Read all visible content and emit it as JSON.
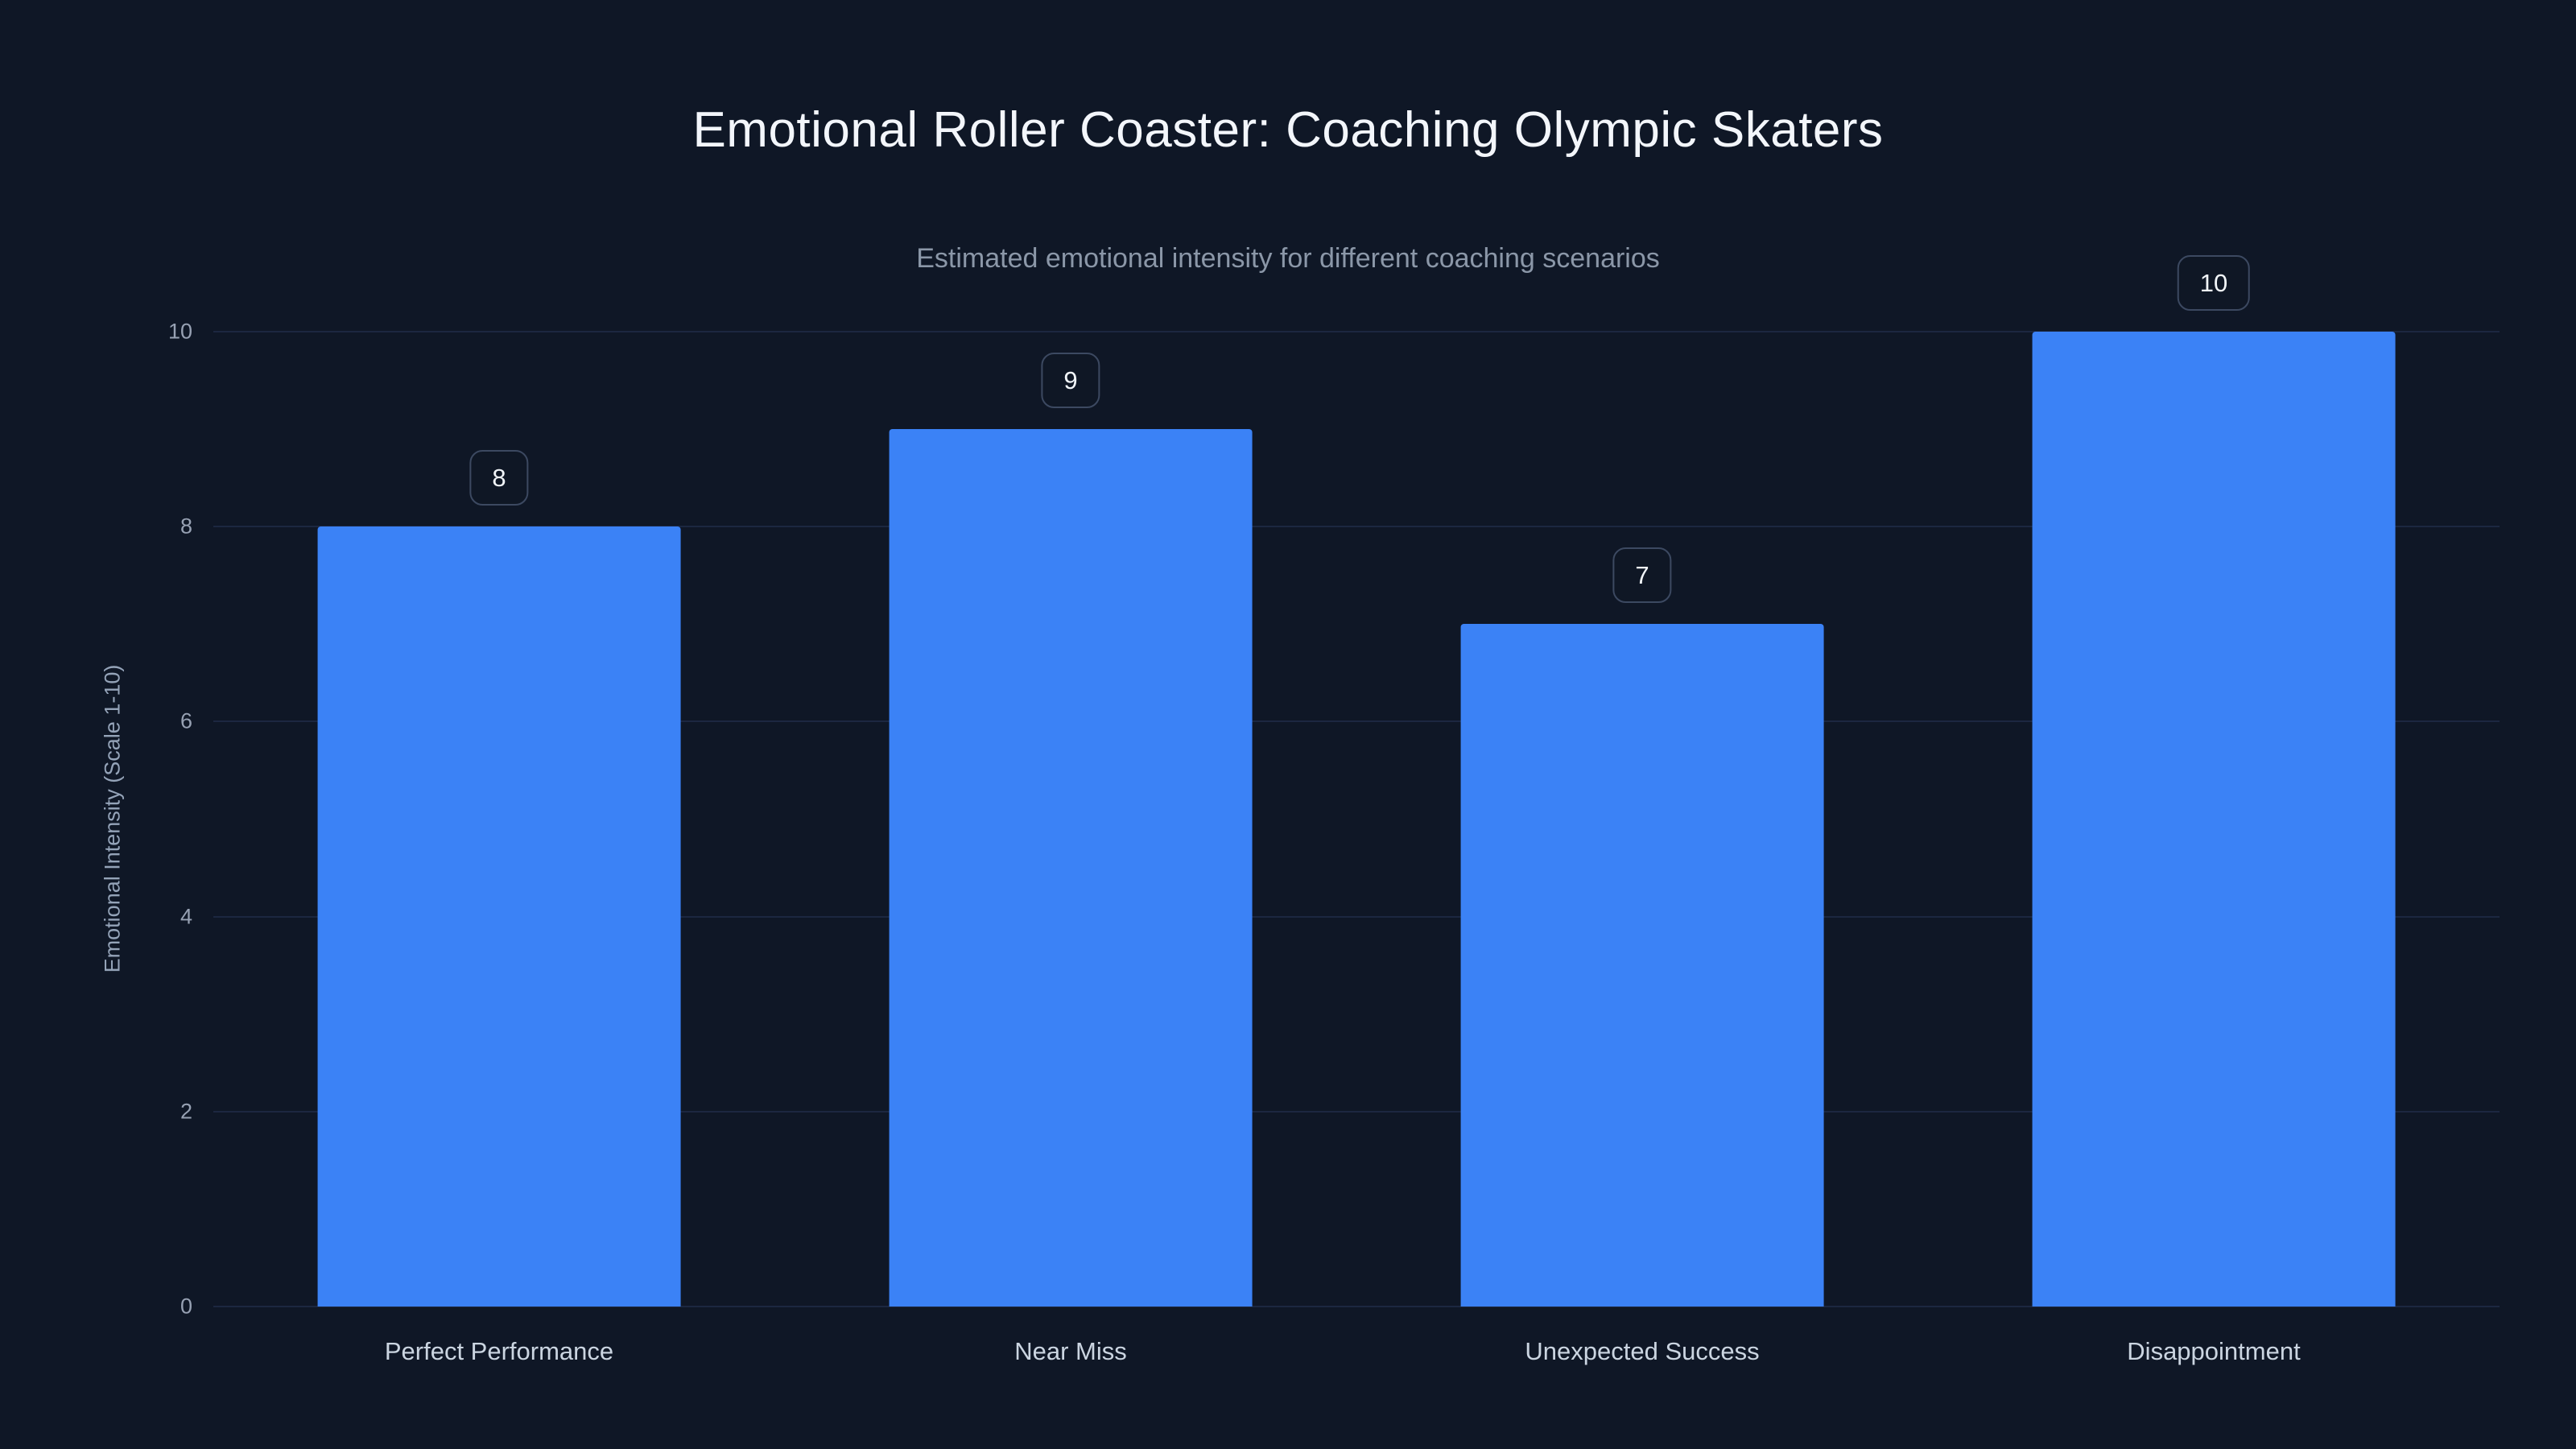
{
  "chart_data": {
    "type": "bar",
    "title": "Emotional Roller Coaster: Coaching Olympic Skaters",
    "subtitle": "Estimated emotional intensity for different coaching scenarios",
    "categories": [
      "Perfect Performance",
      "Near Miss",
      "Unexpected Success",
      "Disappointment"
    ],
    "values": [
      8,
      9,
      7,
      10
    ],
    "value_labels": [
      "8",
      "9",
      "7",
      "10"
    ],
    "xlabel": "",
    "ylabel": "Emotional Intensity (Scale 1-10)",
    "ylim": [
      0,
      10
    ],
    "yticks": [
      0,
      2,
      4,
      6,
      8,
      10
    ],
    "grid": true,
    "legend_position": "none",
    "bar_color": "#3b82f6",
    "background_color": "#0f1726",
    "gridline_color": "#1c2740",
    "badge_border_color": "#3c4961",
    "title_color": "#f3f6fb",
    "subtitle_color": "#8b97a8",
    "tick_color": "#97a1b3",
    "x_label_color": "#cbd5e1"
  }
}
